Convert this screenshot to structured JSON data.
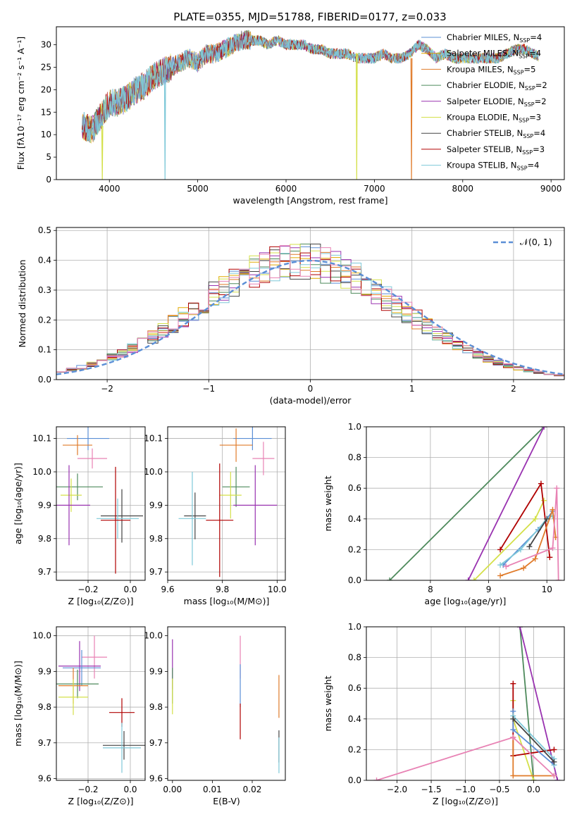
{
  "figure_title": "PLATE=0355, MJD=51788, FIBERID=0177, z=0.033",
  "models": [
    {
      "name": "Chabrier MILES",
      "nssp": "4",
      "color": "#5b8fd6"
    },
    {
      "name": "Salpeter MILES",
      "nssp": "4",
      "color": "#e0a800"
    },
    {
      "name": "Kroupa MILES",
      "nssp": "5",
      "color": "#e07b2a"
    },
    {
      "name": "Chabrier ELODIE",
      "nssp": "2",
      "color": "#4e8a5c"
    },
    {
      "name": "Salpeter ELODIE",
      "nssp": "2",
      "color": "#9932b0"
    },
    {
      "name": "Kroupa ELODIE",
      "nssp": "3",
      "color": "#d4e04a"
    },
    {
      "name": "Chabrier STELIB",
      "nssp": "4",
      "color": "#444444"
    },
    {
      "name": "Salpeter STELIB",
      "nssp": "3",
      "color": "#b00000"
    },
    {
      "name": "Kroupa STELIB",
      "nssp": "4",
      "color": "#7ec8d8"
    }
  ],
  "extra_colors": {
    "pink": "#e882b4",
    "gauss": "#5b8fd6"
  },
  "chart_data": [
    {
      "id": "spectrum",
      "type": "line",
      "xlabel": "wavelength [Angstrom, rest frame]",
      "ylabel": "Flux [fλ10⁻¹⁷ erg cm⁻² s⁻¹ A⁻¹]",
      "xlim": [
        3400,
        9150
      ],
      "ylim": [
        0,
        34
      ],
      "xticks": [
        "4000",
        "5000",
        "6000",
        "7000",
        "8000",
        "9000"
      ],
      "yticks": [
        "0",
        "5",
        "10",
        "15",
        "20",
        "25",
        "30"
      ],
      "x": [
        3700,
        3800,
        3900,
        4000,
        4100,
        4200,
        4300,
        4400,
        4500,
        4600,
        4700,
        4800,
        4900,
        5000,
        5100,
        5200,
        5300,
        5400,
        5500,
        5600,
        5700,
        5800,
        5900,
        6000,
        6100,
        6200,
        6300,
        6400,
        6500,
        6600,
        6700,
        6800,
        6900,
        7000,
        7100,
        7200,
        7300,
        7400,
        7500,
        7600,
        7700,
        7800,
        7900,
        8000,
        8100,
        8200,
        8300,
        8400,
        8500,
        8600,
        8700,
        8800
      ],
      "y": [
        12,
        11,
        14,
        17,
        17,
        18,
        20,
        21,
        23,
        24,
        25,
        26,
        27,
        26,
        28,
        28,
        29,
        30,
        31,
        31,
        31,
        30,
        31,
        30,
        30,
        30,
        29,
        29,
        28,
        28,
        28,
        27,
        27,
        27,
        28,
        27,
        27,
        28,
        30,
        29,
        27,
        28,
        27,
        27,
        27,
        27,
        27,
        27,
        28,
        29,
        29,
        28
      ]
    },
    {
      "id": "residuals",
      "type": "histogram",
      "xlabel": "(data-model)/error",
      "ylabel": "Normed distribution",
      "xlim": [
        -2.5,
        2.5
      ],
      "ylim": [
        0,
        0.51
      ],
      "xticks": [
        "−2",
        "−1",
        "0",
        "1",
        "2"
      ],
      "yticks": [
        "0.0",
        "0.1",
        "0.2",
        "0.3",
        "0.4",
        "0.5"
      ],
      "legend": "𝒩(0, 1)",
      "bin_width": 0.1
    },
    {
      "id": "age-vs-Z",
      "type": "scatter",
      "xlabel": "Z [log₁₀(Z/Z⊙)]",
      "ylabel": "age  [log₁₀(age/yr)]",
      "xlim": [
        -0.35,
        0.07
      ],
      "ylim": [
        9.675,
        10.135
      ],
      "xticks": [
        "−0.2",
        "0.0"
      ],
      "yticks": [
        "9.7",
        "9.8",
        "9.9",
        "10.0",
        "10.1"
      ],
      "points": [
        {
          "x": -0.2,
          "y": 10.1,
          "ex": 0.1,
          "ey": 0.035,
          "c": 0
        },
        {
          "x": -0.25,
          "y": 10.08,
          "ex": 0.07,
          "ey": 0.03,
          "c": 2
        },
        {
          "x": -0.18,
          "y": 10.04,
          "ex": 0.07,
          "ey": 0.03,
          "c": 9
        },
        {
          "x": -0.25,
          "y": 9.955,
          "ex": 0.12,
          "ey": 0.04,
          "c": 3
        },
        {
          "x": -0.28,
          "y": 9.93,
          "ex": 0.05,
          "ey": 0.05,
          "c": 5
        },
        {
          "x": -0.29,
          "y": 9.9,
          "ex": 0.1,
          "ey": 0.12,
          "c": 4
        },
        {
          "x": -0.04,
          "y": 9.868,
          "ex": 0.1,
          "ey": 0.08,
          "c": 6
        },
        {
          "x": -0.06,
          "y": 9.86,
          "ex": 0.1,
          "ey": 0.06,
          "c": 8
        },
        {
          "x": -0.07,
          "y": 9.855,
          "ex": 0.07,
          "ey": 0.16,
          "c": 7
        }
      ]
    },
    {
      "id": "age-vs-mass",
      "type": "scatter",
      "xlabel": "mass [log₁₀(M/M⊙)]",
      "ylabel": "",
      "xlim": [
        9.6,
        10.03
      ],
      "ylim": [
        9.675,
        10.135
      ],
      "xticks": [
        "9.6",
        "9.8",
        "10.0"
      ],
      "yticks": [
        "9.7",
        "9.8",
        "9.9",
        "10.0",
        "10.1"
      ],
      "points": [
        {
          "x": 9.91,
          "y": 10.1,
          "ex": 0.07,
          "ey": 0.035,
          "c": 0
        },
        {
          "x": 9.85,
          "y": 10.08,
          "ex": 0.06,
          "ey": 0.05,
          "c": 2
        },
        {
          "x": 9.95,
          "y": 10.04,
          "ex": 0.04,
          "ey": 0.05,
          "c": 9
        },
        {
          "x": 9.85,
          "y": 9.955,
          "ex": 0.05,
          "ey": 0.06,
          "c": 3
        },
        {
          "x": 9.83,
          "y": 9.93,
          "ex": 0.04,
          "ey": 0.07,
          "c": 5
        },
        {
          "x": 9.92,
          "y": 9.9,
          "ex": 0.08,
          "ey": 0.12,
          "c": 4
        },
        {
          "x": 9.7,
          "y": 9.868,
          "ex": 0.04,
          "ey": 0.07,
          "c": 6
        },
        {
          "x": 9.69,
          "y": 9.86,
          "ex": 0.05,
          "ey": 0.14,
          "c": 8
        },
        {
          "x": 9.79,
          "y": 9.855,
          "ex": 0.05,
          "ey": 0.17,
          "c": 7
        }
      ]
    },
    {
      "id": "massweight-vs-age",
      "type": "line",
      "xlabel": "age  [log₁₀(age/yr)]",
      "ylabel": "mass weight",
      "xlim": [
        6.9,
        10.3
      ],
      "ylim": [
        0,
        1
      ],
      "xticks": [
        "8",
        "9",
        "10"
      ],
      "yticks": [
        "0.0",
        "0.2",
        "0.4",
        "0.6",
        "0.8",
        "1.0"
      ],
      "series": [
        {
          "c": 3,
          "x": [
            7.3,
            9.95
          ],
          "y": [
            0.0,
            1.0
          ]
        },
        {
          "c": 4,
          "x": [
            8.65,
            9.95
          ],
          "y": [
            0.0,
            1.0
          ]
        },
        {
          "c": 5,
          "x": [
            8.75,
            9.8,
            9.95
          ],
          "y": [
            0.0,
            0.4,
            0.52
          ]
        },
        {
          "c": 7,
          "x": [
            9.2,
            9.9,
            10.05
          ],
          "y": [
            0.2,
            0.63,
            0.15
          ]
        },
        {
          "c": 0,
          "x": [
            9.25,
            9.85,
            10.1
          ],
          "y": [
            0.1,
            0.33,
            0.45
          ]
        },
        {
          "c": 8,
          "x": [
            9.2,
            9.55,
            10.0,
            10.1
          ],
          "y": [
            0.1,
            0.2,
            0.4,
            0.42
          ]
        },
        {
          "c": 2,
          "x": [
            9.2,
            9.6,
            9.8,
            10.1,
            10.15
          ],
          "y": [
            0.03,
            0.08,
            0.14,
            0.46,
            0.28
          ]
        },
        {
          "c": 9,
          "x": [
            9.3,
            10.1,
            10.17,
            10.2
          ],
          "y": [
            0.09,
            0.21,
            0.6,
            0.0
          ]
        },
        {
          "c": 6,
          "x": [
            9.7,
            10.0
          ],
          "y": [
            0.22,
            0.4
          ]
        }
      ]
    },
    {
      "id": "mass-vs-Z",
      "type": "scatter",
      "xlabel": "Z [log₁₀(Z/Z⊙)]",
      "ylabel": "mass [log₁₀(M/M⊙)]",
      "xlim": [
        -0.35,
        0.07
      ],
      "ylim": [
        9.595,
        10.025
      ],
      "xticks": [
        "−0.2",
        "0.0"
      ],
      "yticks": [
        "9.6",
        "9.7",
        "9.8",
        "9.9",
        "10.0"
      ],
      "points": [
        {
          "x": -0.17,
          "y": 9.94,
          "ex": 0.06,
          "ey": 0.06,
          "c": 9
        },
        {
          "x": -0.24,
          "y": 9.915,
          "ex": 0.1,
          "ey": 0.07,
          "c": 4
        },
        {
          "x": -0.23,
          "y": 9.91,
          "ex": 0.09,
          "ey": 0.05,
          "c": 0
        },
        {
          "x": -0.25,
          "y": 9.865,
          "ex": 0.1,
          "ey": 0.04,
          "c": 3
        },
        {
          "x": -0.27,
          "y": 9.86,
          "ex": 0.07,
          "ey": 0.05,
          "c": 2
        },
        {
          "x": -0.27,
          "y": 9.828,
          "ex": 0.07,
          "ey": 0.05,
          "c": 5
        },
        {
          "x": -0.04,
          "y": 9.785,
          "ex": 0.06,
          "ey": 0.04,
          "c": 7
        },
        {
          "x": -0.03,
          "y": 9.693,
          "ex": 0.1,
          "ey": 0.04,
          "c": 6
        },
        {
          "x": -0.04,
          "y": 9.686,
          "ex": 0.09,
          "ey": 0.07,
          "c": 8
        }
      ]
    },
    {
      "id": "mass-vs-EBV",
      "type": "scatter",
      "xlabel": "E(B-V)",
      "ylabel": "",
      "xlim": [
        -0.0012,
        0.0283
      ],
      "ylim": [
        9.595,
        10.025
      ],
      "xticks": [
        "0.00",
        "0.01",
        "0.02"
      ],
      "yticks": [
        "9.6",
        "9.7",
        "9.8",
        "9.9",
        "10.0"
      ],
      "points": [
        {
          "x": 0.0,
          "y": 9.92,
          "ex": 0,
          "ey": 0.07,
          "c": 4
        },
        {
          "x": 0.0,
          "y": 9.86,
          "ex": 0,
          "ey": 0.05,
          "c": 3
        },
        {
          "x": 0.0,
          "y": 9.83,
          "ex": 0,
          "ey": 0.05,
          "c": 5
        },
        {
          "x": 0.017,
          "y": 9.94,
          "ex": 0,
          "ey": 0.06,
          "c": 9
        },
        {
          "x": 0.017,
          "y": 9.86,
          "ex": 0,
          "ey": 0.06,
          "c": 0
        },
        {
          "x": 0.017,
          "y": 9.76,
          "ex": 0,
          "ey": 0.05,
          "c": 7
        },
        {
          "x": 0.0267,
          "y": 9.83,
          "ex": 0,
          "ey": 0.06,
          "c": 2
        },
        {
          "x": 0.0267,
          "y": 9.69,
          "ex": 0,
          "ey": 0.045,
          "c": 6
        },
        {
          "x": 0.0267,
          "y": 9.665,
          "ex": 0,
          "ey": 0.05,
          "c": 8
        }
      ]
    },
    {
      "id": "massweight-vs-Z",
      "type": "line",
      "xlabel": "Z [log₁₀(Z/Z⊙)]",
      "ylabel": "mass weight",
      "xlim": [
        -2.45,
        0.45
      ],
      "ylim": [
        0,
        1
      ],
      "xticks": [
        "−2.0",
        "−1.5",
        "−1.0",
        "−0.5",
        "0.0"
      ],
      "yticks": [
        "0.0",
        "0.2",
        "0.4",
        "0.6",
        "0.8",
        "1.0"
      ],
      "series": [
        {
          "c": 3,
          "x": [
            -0.2,
            0.0
          ],
          "y": [
            1.0,
            0.0
          ]
        },
        {
          "c": 4,
          "x": [
            -0.2,
            0.35
          ],
          "y": [
            1.0,
            0.0
          ]
        },
        {
          "c": 5,
          "x": [
            -0.3,
            -0.3,
            0.0
          ],
          "y": [
            0.52,
            0.4,
            0.0
          ]
        },
        {
          "c": 7,
          "x": [
            -0.3,
            -0.3,
            0.3
          ],
          "y": [
            0.63,
            0.16,
            0.2
          ]
        },
        {
          "c": 0,
          "x": [
            -0.3,
            -0.3,
            0.3
          ],
          "y": [
            0.45,
            0.33,
            0.1
          ]
        },
        {
          "c": 8,
          "x": [
            -0.3,
            0.3,
            0.3
          ],
          "y": [
            0.42,
            0.14,
            0.1
          ]
        },
        {
          "c": 2,
          "x": [
            -0.3,
            -0.3,
            0.3
          ],
          "y": [
            0.28,
            0.03,
            0.03
          ]
        },
        {
          "c": 9,
          "x": [
            -2.3,
            -0.3,
            0.3
          ],
          "y": [
            0.0,
            0.28,
            0.03
          ]
        },
        {
          "c": 6,
          "x": [
            -0.3,
            0.3
          ],
          "y": [
            0.4,
            0.12
          ]
        }
      ]
    }
  ]
}
